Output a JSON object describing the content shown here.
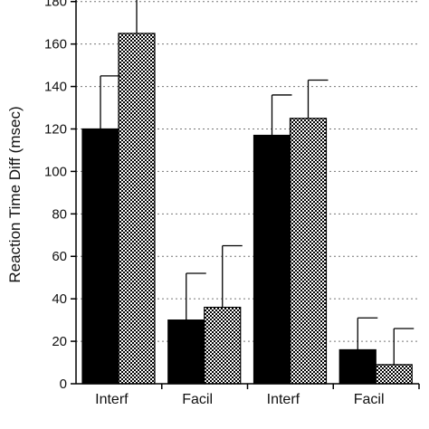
{
  "chart_data": {
    "type": "bar",
    "title": "",
    "xlabel": "",
    "ylabel": "Reaction Time Diff  (msec)",
    "ylim": [
      0,
      185
    ],
    "yticks": [
      0,
      20,
      40,
      60,
      80,
      100,
      120,
      140,
      160,
      180
    ],
    "grid": "horizontal-dotted",
    "categories": [
      "Interf",
      "Facil",
      "Interf",
      "Facil"
    ],
    "series": [
      {
        "color": "#000000",
        "fill": "solid",
        "values": [
          120,
          30,
          117,
          16
        ],
        "error": [
          25,
          22,
          19,
          15
        ]
      },
      {
        "color": "#000000",
        "fill": "checkered",
        "values": [
          165,
          36,
          125,
          9
        ],
        "error": [
          25,
          29,
          18,
          17
        ]
      }
    ]
  }
}
